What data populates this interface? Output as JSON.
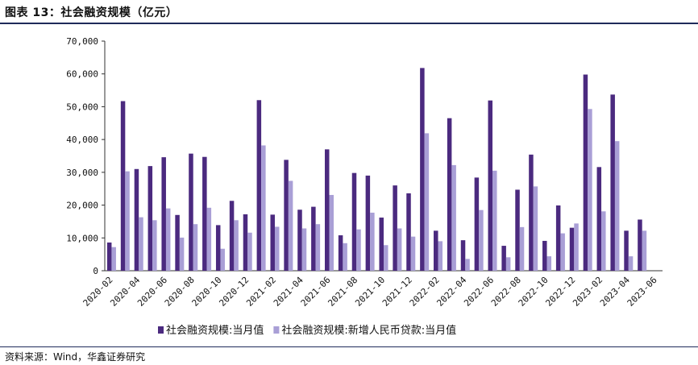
{
  "header": {
    "title": "图表 13：社会融资规模（亿元）"
  },
  "footer": {
    "source": "资料来源：Wind，华鑫证券研究"
  },
  "chart_data": {
    "type": "bar",
    "title": "",
    "xlabel": "",
    "ylabel": "",
    "ylim": [
      0,
      70000
    ],
    "yticks": [
      "0",
      "10,000",
      "20,000",
      "30,000",
      "40,000",
      "50,000",
      "60,000",
      "70,000"
    ],
    "grid": false,
    "legend_position": "bottom",
    "categories": [
      "2020-02",
      "2020-03",
      "2020-04",
      "2020-05",
      "2020-06",
      "2020-07",
      "2020-08",
      "2020-09",
      "2020-10",
      "2020-11",
      "2020-12",
      "2021-01",
      "2021-02",
      "2021-03",
      "2021-04",
      "2021-05",
      "2021-06",
      "2021-07",
      "2021-08",
      "2021-09",
      "2021-10",
      "2021-11",
      "2021-12",
      "2022-01",
      "2022-02",
      "2022-03",
      "2022-04",
      "2022-05",
      "2022-06",
      "2022-07",
      "2022-08",
      "2022-09",
      "2022-10",
      "2022-11",
      "2022-12",
      "2023-01",
      "2023-02",
      "2023-03",
      "2023-04",
      "2023-05",
      "2023-06"
    ],
    "xtick_labels": [
      "2020-02",
      "2020-04",
      "2020-06",
      "2020-08",
      "2020-10",
      "2020-12",
      "2021-02",
      "2021-04",
      "2021-06",
      "2021-08",
      "2021-10",
      "2021-12",
      "2022-02",
      "2022-04",
      "2022-06",
      "2022-08",
      "2022-10",
      "2022-12",
      "2023-02",
      "2023-04",
      "2023-06"
    ],
    "series": [
      {
        "name": "社会融资规模:当月值",
        "color": "#4b2a7f",
        "values": [
          8600,
          51700,
          31000,
          31900,
          34600,
          17000,
          35700,
          34700,
          13900,
          21300,
          17200,
          52000,
          17100,
          33800,
          18600,
          19500,
          37000,
          10800,
          29800,
          29000,
          16200,
          26000,
          23600,
          61800,
          12200,
          46500,
          9300,
          28400,
          51900,
          7600,
          24700,
          35400,
          9100,
          19900,
          13100,
          59800,
          31600,
          53700,
          12200,
          15600,
          null
        ]
      },
      {
        "name": "社会融资规模:新增人民币贷款:当月值",
        "color": "#a99fd6",
        "values": [
          7200,
          30300,
          16300,
          15400,
          19000,
          10100,
          14200,
          19200,
          6700,
          15400,
          11600,
          38200,
          13400,
          27400,
          12900,
          14200,
          23100,
          8400,
          12600,
          17700,
          7800,
          12900,
          10400,
          41900,
          9000,
          32200,
          3600,
          18500,
          30500,
          4100,
          13300,
          25700,
          4400,
          11400,
          14400,
          49300,
          18100,
          39500,
          4400,
          12200,
          null
        ]
      }
    ]
  }
}
